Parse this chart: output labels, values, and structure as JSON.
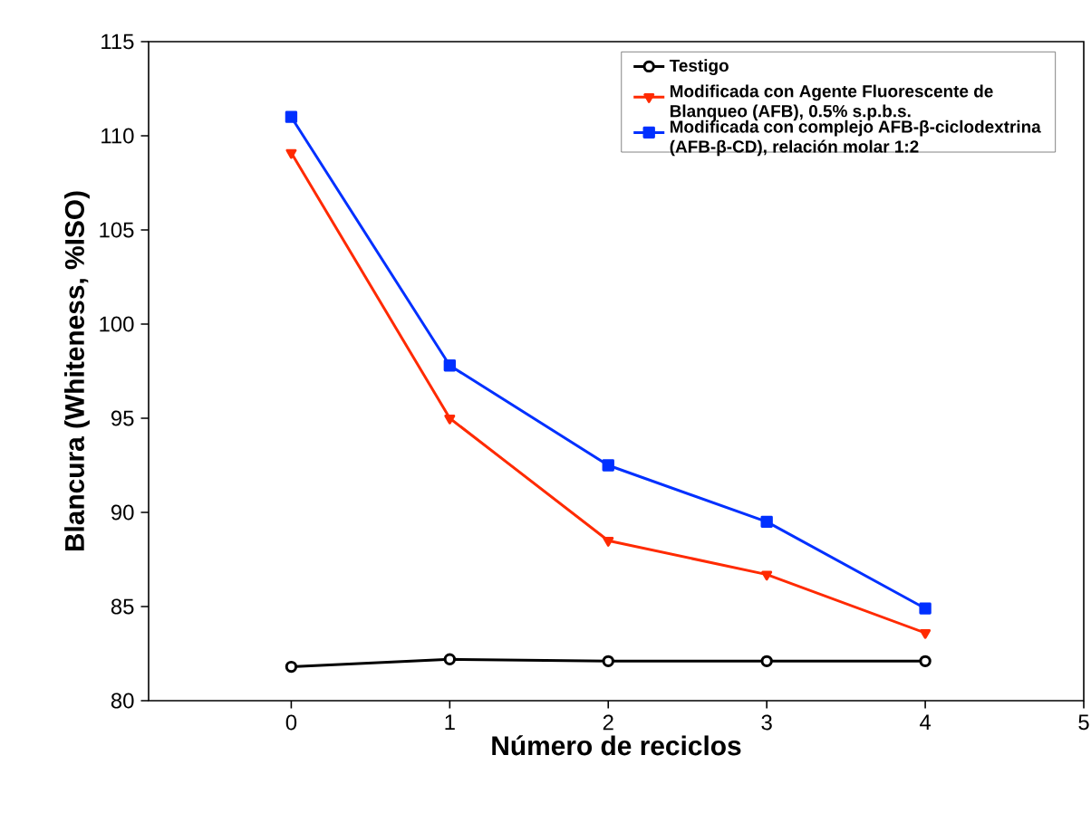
{
  "chart_data": {
    "type": "line",
    "xlabel": "Número de reciclos",
    "ylabel": "Blancura (Whiteness, %ISO)",
    "x": [
      0,
      1,
      2,
      3,
      4
    ],
    "xlim": [
      -0.9,
      5
    ],
    "xticks": [
      0,
      1,
      2,
      3,
      4,
      5
    ],
    "ylim": [
      80,
      115
    ],
    "yticks": [
      80,
      85,
      90,
      95,
      100,
      105,
      110,
      115
    ],
    "grid": false,
    "legend": "top right",
    "line_style": "solid",
    "series": [
      {
        "name": "Testigo",
        "color": "#000000",
        "marker": "circle",
        "values": [
          81.8,
          82.2,
          82.1,
          82.1,
          82.1
        ]
      },
      {
        "name": "Modificada con Agente Fluorescente de Blanqueo (AFB), 0.5% s.p.b.s.",
        "color": "#ff2a00",
        "marker": "triangle",
        "values": [
          109.1,
          95.0,
          88.5,
          86.7,
          83.6
        ]
      },
      {
        "name": "Modificada con complejo AFB-β-ciclodextrina (AFB-β-CD), relación molar 1:2",
        "color": "#0030ff",
        "marker": "square",
        "values": [
          111.0,
          97.8,
          92.5,
          89.5,
          84.9
        ]
      }
    ]
  }
}
